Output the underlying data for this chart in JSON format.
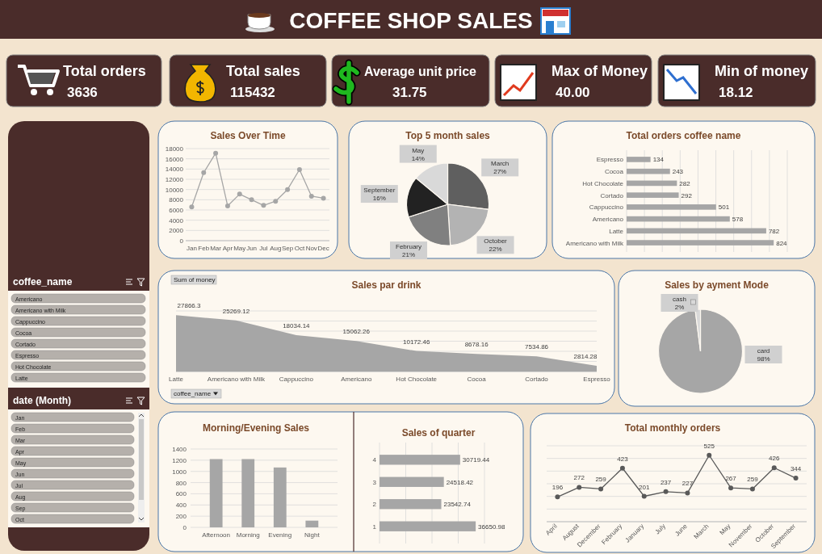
{
  "chart_data": [
    {
      "type": "other",
      "title": "COFFEE SHOP SALES",
      "annotations": [
        "Total orders",
        "3636",
        "Total sales",
        "115432",
        "Average unit price",
        "31.75",
        "Max of Money",
        "40.00",
        "Min of money",
        "18.12"
      ]
    },
    {
      "type": "other",
      "title": "coffee_name",
      "annotations": [
        "Americano",
        "Americano with Milk",
        "Cappuccino",
        "Cocoa",
        "Cortado",
        "Espresso",
        "Hot Chocolate",
        "Latte"
      ]
    },
    {
      "type": "other",
      "title": "date (Month)",
      "annotations": [
        "Jan",
        "Feb",
        "Mar",
        "Apr",
        "May",
        "Jun",
        "Jul",
        "Aug",
        "Sep",
        "Oct"
      ]
    },
    {
      "type": "line",
      "title": "Sales Over Time",
      "categories": [
        "Jan",
        "Feb",
        "Mar",
        "Apr",
        "May",
        "Jun",
        "Jul",
        "Aug",
        "Sep",
        "Oct",
        "Nov",
        "Dec"
      ],
      "values": [
        6600,
        13300,
        17100,
        6800,
        9100,
        8000,
        6900,
        7700,
        10000,
        13900,
        8700,
        8300
      ],
      "color": "#a6a6a6",
      "ylim": [
        0,
        18000
      ],
      "yticks": [
        0,
        2000,
        4000,
        6000,
        8000,
        10000,
        12000,
        14000,
        16000,
        18000
      ],
      "grid": "y",
      "marker": "circle"
    },
    {
      "type": "pie",
      "title": "Top 5 month sales",
      "categories": [
        "March",
        "October",
        "February",
        "September",
        "May"
      ],
      "values": [
        27,
        22,
        21,
        16,
        14
      ],
      "colors": [
        "#5f5f5f",
        "#b3b3b3",
        "#808080",
        "#222222",
        "#d9d9d9"
      ],
      "value_labels": [
        "27%",
        "22%",
        "21%",
        "16%",
        "14%"
      ]
    },
    {
      "type": "bar",
      "title": "Total orders coffee name",
      "orientation": "horizontal",
      "categories": [
        "Espresso",
        "Cocoa",
        "Hot Chocolate",
        "Cortado",
        "Cappuccino",
        "Americano",
        "Latte",
        "Americano with Milk"
      ],
      "values": [
        134,
        243,
        282,
        292,
        501,
        578,
        782,
        824
      ],
      "color": "#a6a6a6",
      "xlim": [
        0,
        900
      ],
      "xticks": [
        {
          "value": 0,
          "label": null
        },
        {
          "value": 100,
          "label": null
        },
        {
          "value": 200,
          "label": null
        },
        {
          "value": 300,
          "label": null
        },
        {
          "value": 400,
          "label": null
        },
        {
          "value": 500,
          "label": null
        },
        {
          "value": 600,
          "label": null
        },
        {
          "value": 700,
          "label": null
        },
        {
          "value": 800,
          "label": null
        },
        {
          "value": 900,
          "label": null
        }
      ],
      "grid": "x",
      "tick_labels": "y",
      "data_labels": true
    },
    {
      "type": "area",
      "title": "Sales par drink",
      "categories": [
        "Latte",
        "Americano with Milk",
        "Cappuccino",
        "Americano",
        "Hot Chocolate",
        "Cocoa",
        "Cortado",
        "Espresso"
      ],
      "values": [
        27866.3,
        25269.12,
        18034.14,
        15062.26,
        10172.46,
        8678.16,
        7534.86,
        2814.28
      ],
      "color": "#a6a6a6",
      "ylim": [
        0,
        30000
      ],
      "yticks": [
        {
          "value": 0,
          "label": null
        },
        {
          "value": 5000,
          "label": null
        },
        {
          "value": 10000,
          "label": null
        },
        {
          "value": 15000,
          "label": null
        },
        {
          "value": 20000,
          "label": null
        },
        {
          "value": 25000,
          "label": null
        },
        {
          "value": 30000,
          "label": null
        }
      ],
      "grid": "y",
      "tick_labels": "x",
      "data_labels": true,
      "annotations": [
        "Sum of money",
        "coffee_name"
      ]
    },
    {
      "type": "pie",
      "title": "Sales by ayment Mode",
      "categories": [
        "card",
        "cash"
      ],
      "values": [
        98,
        2
      ],
      "colors": [
        "#a6a6a6",
        "#d9d9d9"
      ],
      "value_labels": [
        "98%",
        "2%"
      ]
    },
    {
      "type": "bar",
      "title": "Morning/Evening Sales",
      "categories": [
        "Afternoon",
        "Morning",
        "Evening",
        "Night"
      ],
      "values": [
        1220,
        1220,
        1070,
        120
      ],
      "color": "#a6a6a6",
      "ylim": [
        0,
        1400
      ],
      "yticks": [
        0,
        200,
        400,
        600,
        800,
        1000,
        1200,
        1400
      ],
      "grid": "y"
    },
    {
      "type": "bar",
      "title": "Sales of quarter",
      "orientation": "horizontal",
      "categories": [
        "4",
        "3",
        "2",
        "1"
      ],
      "values": [
        30719.44,
        24518.42,
        23542.74,
        36650.98
      ],
      "color": "#a6a6a6",
      "xlim": [
        0,
        40000
      ],
      "xticks": [
        {
          "value": 0,
          "label": null
        },
        {
          "value": 10000,
          "label": null
        },
        {
          "value": 20000,
          "label": null
        },
        {
          "value": 30000,
          "label": null
        },
        {
          "value": 40000,
          "label": null
        }
      ],
      "grid": "x",
      "tick_labels": "y",
      "data_labels": true
    },
    {
      "type": "line",
      "title": "Total monthly orders",
      "categories": [
        "April",
        "August",
        "December",
        "February",
        "January",
        "July",
        "June",
        "March",
        "May",
        "November",
        "October",
        "September"
      ],
      "values": [
        196,
        272,
        259,
        423,
        201,
        237,
        227,
        525,
        267,
        259,
        426,
        344
      ],
      "color": "#595959",
      "ylim": [
        0,
        600
      ],
      "yticks": [
        {
          "value": 0,
          "label": null
        },
        {
          "value": 100,
          "label": null
        },
        {
          "value": 200,
          "label": null
        },
        {
          "value": 300,
          "label": null
        },
        {
          "value": 400,
          "label": null
        },
        {
          "value": 500,
          "label": null
        },
        {
          "value": 600,
          "label": null
        }
      ],
      "grid": "y",
      "tick_labels": "x",
      "marker": "circle",
      "data_labels": true
    }
  ]
}
